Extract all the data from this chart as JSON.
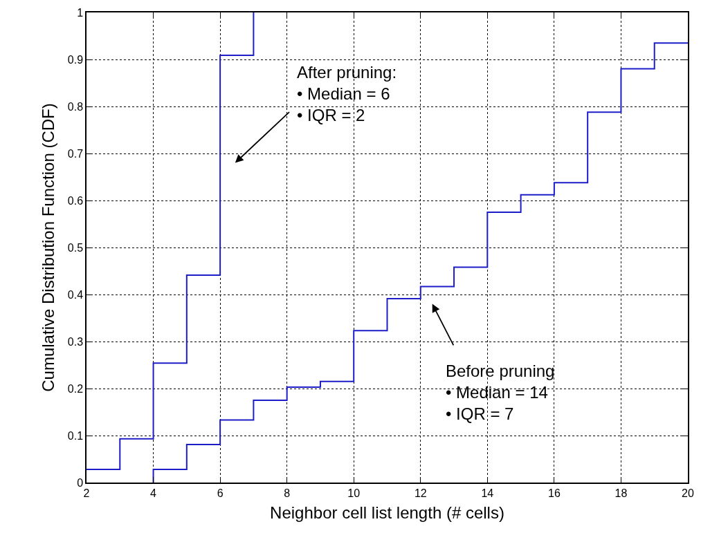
{
  "chart_data": {
    "type": "step",
    "xlabel": "Neighbor cell list length (# cells)",
    "ylabel": "Cumulative Distribution Function (CDF)",
    "series": [
      {
        "color": "#1c1cc8",
        "x": [
          2,
          3,
          4,
          5,
          6,
          7
        ],
        "values": [
          0.028,
          0.093,
          0.254,
          0.441,
          0.909,
          1.0
        ]
      },
      {
        "color": "#1c1cc8",
        "x": [
          4,
          4,
          5,
          6,
          7,
          8,
          9,
          10,
          11,
          12,
          13,
          14,
          15,
          16,
          17,
          18,
          19,
          20
        ],
        "values": [
          0,
          0.028,
          0.081,
          0.133,
          0.175,
          0.203,
          0.215,
          0.323,
          0.391,
          0.417,
          0.458,
          0.575,
          0.612,
          0.638,
          0.788,
          0.88,
          0.935,
          0.935
        ]
      }
    ],
    "annotations": [
      "After pruning:\n• Median = 6\n• IQR = 2",
      "Before pruning\n• Median = 14\n• IQR = 7"
    ],
    "xlim": [
      2,
      20
    ],
    "xticks": [
      2,
      4,
      6,
      8,
      10,
      12,
      14,
      16,
      18,
      20
    ],
    "ylim": [
      0,
      1
    ],
    "yticks": [
      0,
      0.1,
      0.2,
      0.3,
      0.4,
      0.5,
      0.6,
      0.7,
      0.8,
      0.9,
      1
    ],
    "grid": true,
    "line_style": "solid"
  }
}
